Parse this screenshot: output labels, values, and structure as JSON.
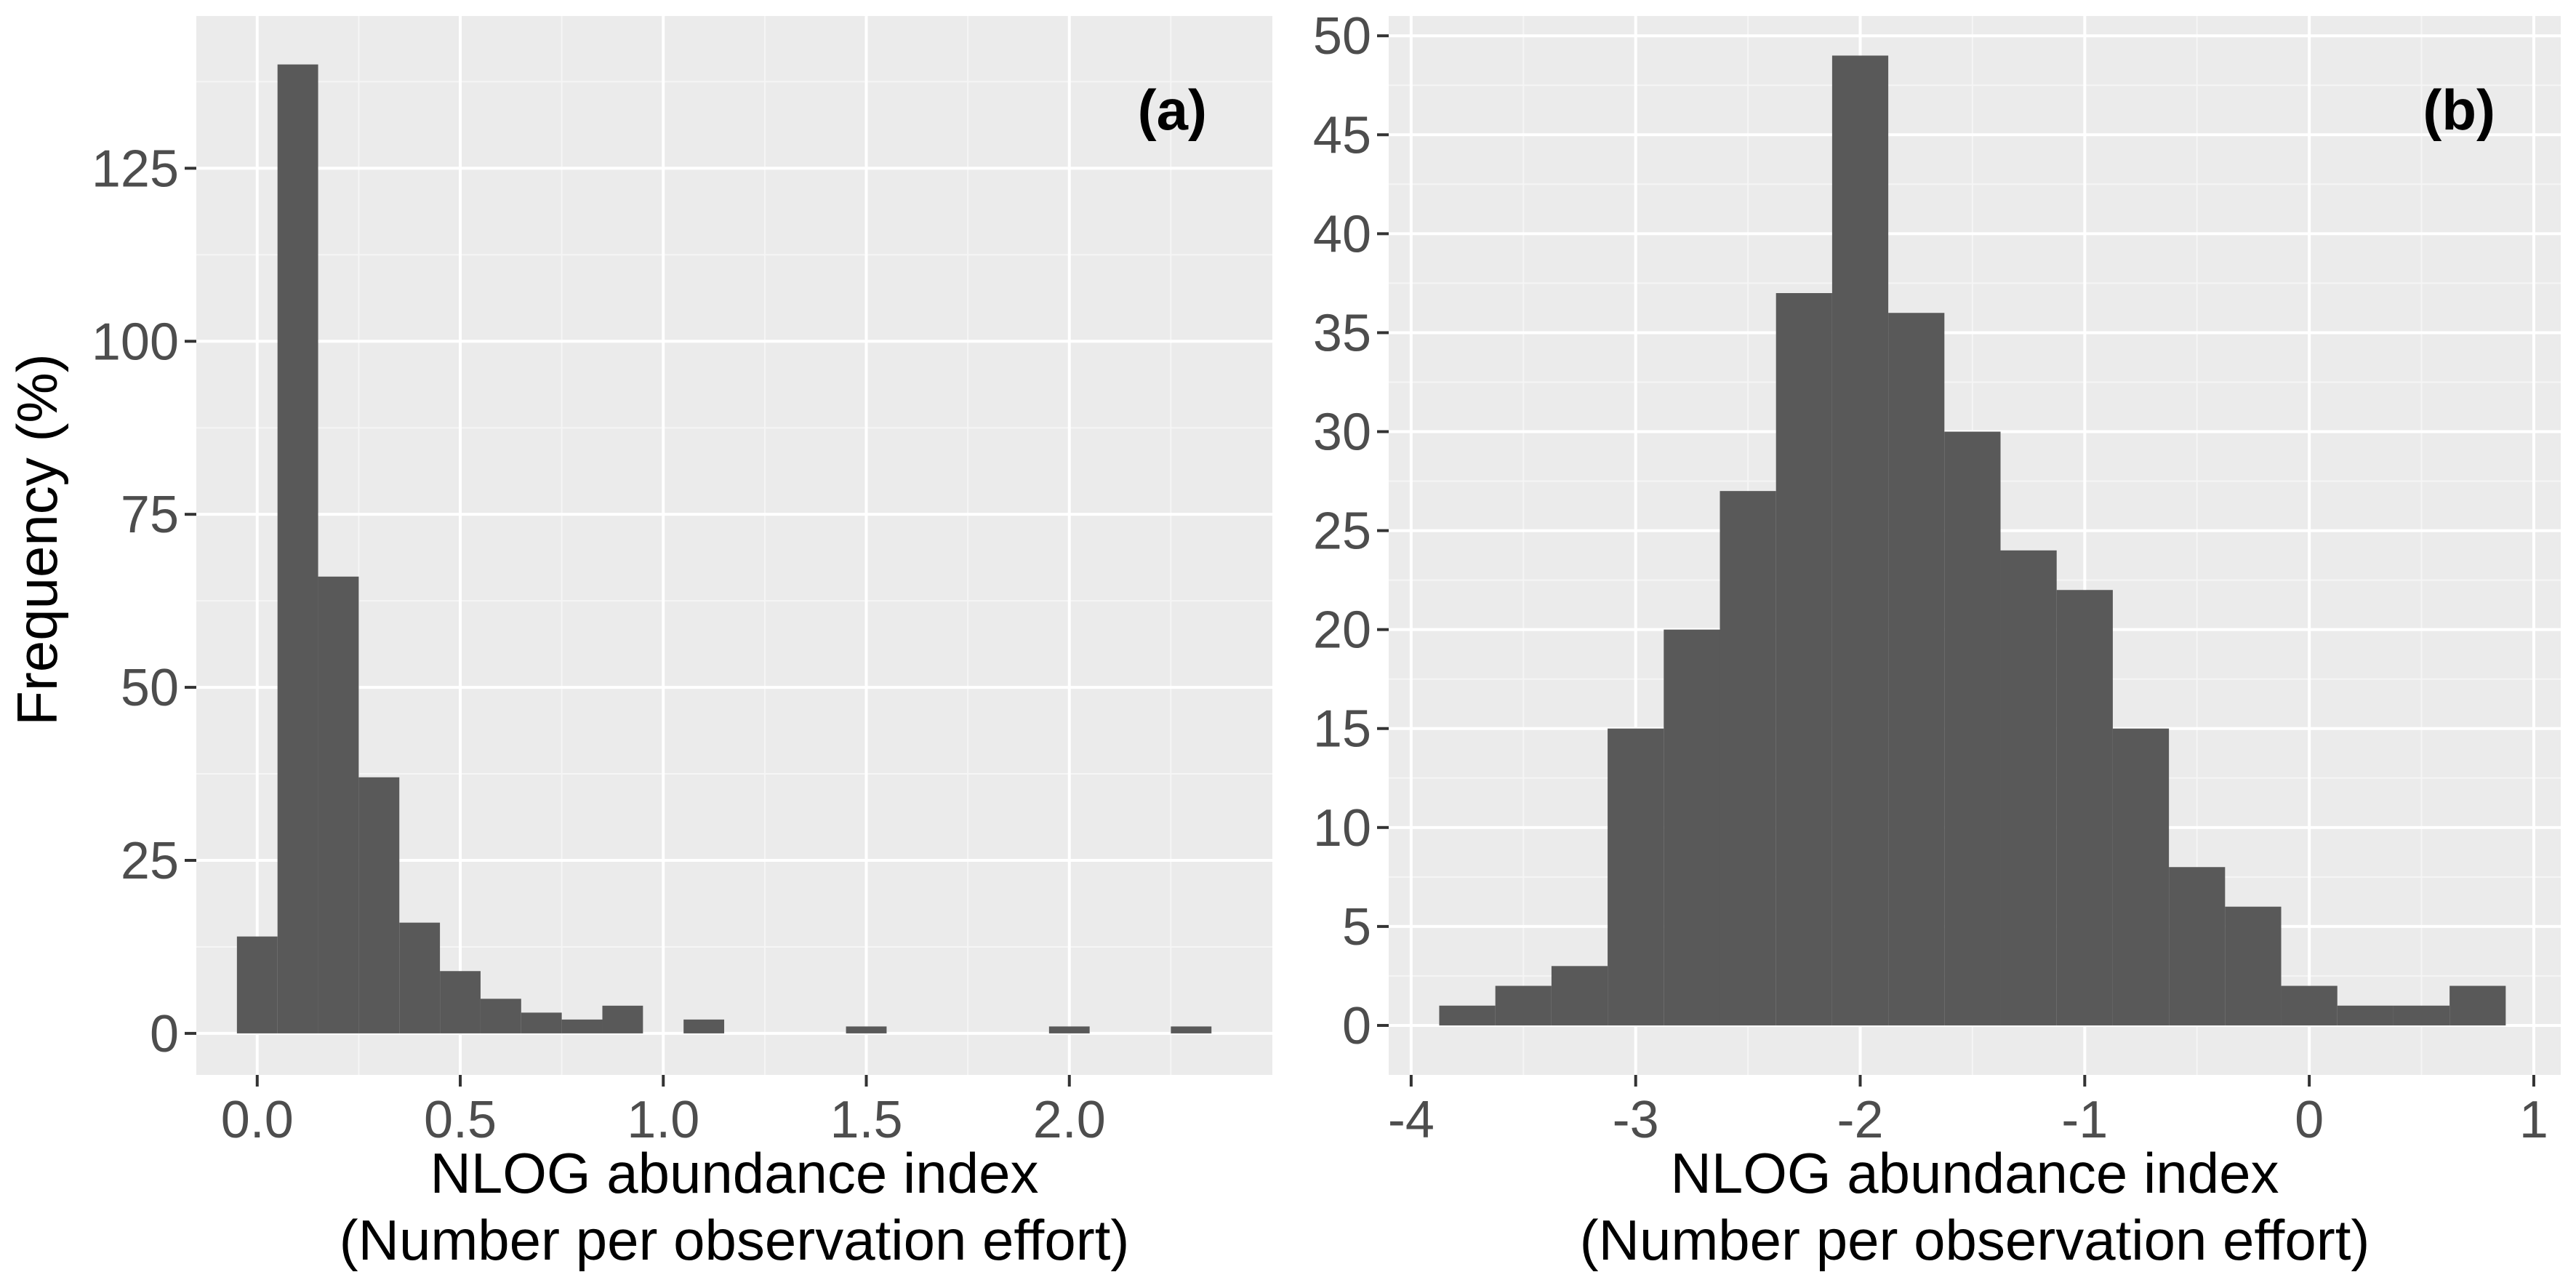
{
  "ylabel": "Frequency (%)",
  "colors": {
    "panel_bg": "#ebebeb",
    "grid_major": "#ffffff",
    "grid_minor": "#f5f5f5",
    "bar_fill": "#595959",
    "tick": "#333333"
  },
  "chart_data": [
    {
      "type": "bar",
      "panel_tag": "(a)",
      "xlabel_line1": "NLOG abundance index",
      "xlabel_line2": "(Number per observation effort)",
      "ylabel": "Frequency (%)",
      "xlim": [
        -0.15,
        2.5
      ],
      "ylim": [
        -6,
        147
      ],
      "xticks": [
        0.0,
        0.5,
        1.0,
        1.5,
        2.0
      ],
      "xtick_labels": [
        "0.0",
        "0.5",
        "1.0",
        "1.5",
        "2.0"
      ],
      "yticks": [
        0,
        25,
        50,
        75,
        100,
        125
      ],
      "ytick_labels": [
        "0",
        "25",
        "50",
        "75",
        "100",
        "125"
      ],
      "bin_width": 0.1,
      "bins": [
        {
          "x0": -0.05,
          "x1": 0.05,
          "count": 14
        },
        {
          "x0": 0.05,
          "x1": 0.15,
          "count": 140
        },
        {
          "x0": 0.15,
          "x1": 0.25,
          "count": 66
        },
        {
          "x0": 0.25,
          "x1": 0.35,
          "count": 37
        },
        {
          "x0": 0.35,
          "x1": 0.45,
          "count": 16
        },
        {
          "x0": 0.45,
          "x1": 0.55,
          "count": 9
        },
        {
          "x0": 0.55,
          "x1": 0.65,
          "count": 5
        },
        {
          "x0": 0.65,
          "x1": 0.75,
          "count": 3
        },
        {
          "x0": 0.75,
          "x1": 0.85,
          "count": 2
        },
        {
          "x0": 0.85,
          "x1": 0.95,
          "count": 4
        },
        {
          "x0": 1.05,
          "x1": 1.15,
          "count": 2
        },
        {
          "x0": 1.45,
          "x1": 1.55,
          "count": 1
        },
        {
          "x0": 1.95,
          "x1": 2.05,
          "count": 1
        },
        {
          "x0": 2.25,
          "x1": 2.35,
          "count": 1
        }
      ]
    },
    {
      "type": "bar",
      "panel_tag": "(b)",
      "xlabel_line1": "NLOG abundance index",
      "xlabel_line2": "(Number per observation effort)",
      "ylabel": "",
      "xlim": [
        -4.1,
        1.12
      ],
      "ylim": [
        -2.5,
        51
      ],
      "xticks": [
        -4,
        -3,
        -2,
        -1,
        0,
        1
      ],
      "xtick_labels": [
        "-4",
        "-3",
        "-2",
        "-1",
        "0",
        "1"
      ],
      "yticks": [
        0,
        5,
        10,
        15,
        20,
        25,
        30,
        35,
        40,
        45,
        50
      ],
      "ytick_labels": [
        "0",
        "5",
        "10",
        "15",
        "20",
        "25",
        "30",
        "35",
        "40",
        "45",
        "50"
      ],
      "bin_width": 0.25,
      "bins": [
        {
          "x0": -3.875,
          "x1": -3.625,
          "count": 1
        },
        {
          "x0": -3.625,
          "x1": -3.375,
          "count": 2
        },
        {
          "x0": -3.375,
          "x1": -3.125,
          "count": 3
        },
        {
          "x0": -3.125,
          "x1": -2.875,
          "count": 15
        },
        {
          "x0": -2.875,
          "x1": -2.625,
          "count": 20
        },
        {
          "x0": -2.625,
          "x1": -2.375,
          "count": 27
        },
        {
          "x0": -2.375,
          "x1": -2.125,
          "count": 37
        },
        {
          "x0": -2.125,
          "x1": -1.875,
          "count": 49
        },
        {
          "x0": -1.875,
          "x1": -1.625,
          "count": 36
        },
        {
          "x0": -1.625,
          "x1": -1.375,
          "count": 30
        },
        {
          "x0": -1.375,
          "x1": -1.125,
          "count": 24
        },
        {
          "x0": -1.125,
          "x1": -0.875,
          "count": 22
        },
        {
          "x0": -0.875,
          "x1": -0.625,
          "count": 15
        },
        {
          "x0": -0.625,
          "x1": -0.375,
          "count": 8
        },
        {
          "x0": -0.375,
          "x1": -0.125,
          "count": 6
        },
        {
          "x0": -0.125,
          "x1": 0.125,
          "count": 2
        },
        {
          "x0": 0.125,
          "x1": 0.375,
          "count": 1
        },
        {
          "x0": 0.375,
          "x1": 0.625,
          "count": 1
        },
        {
          "x0": 0.625,
          "x1": 0.875,
          "count": 2
        }
      ]
    }
  ]
}
